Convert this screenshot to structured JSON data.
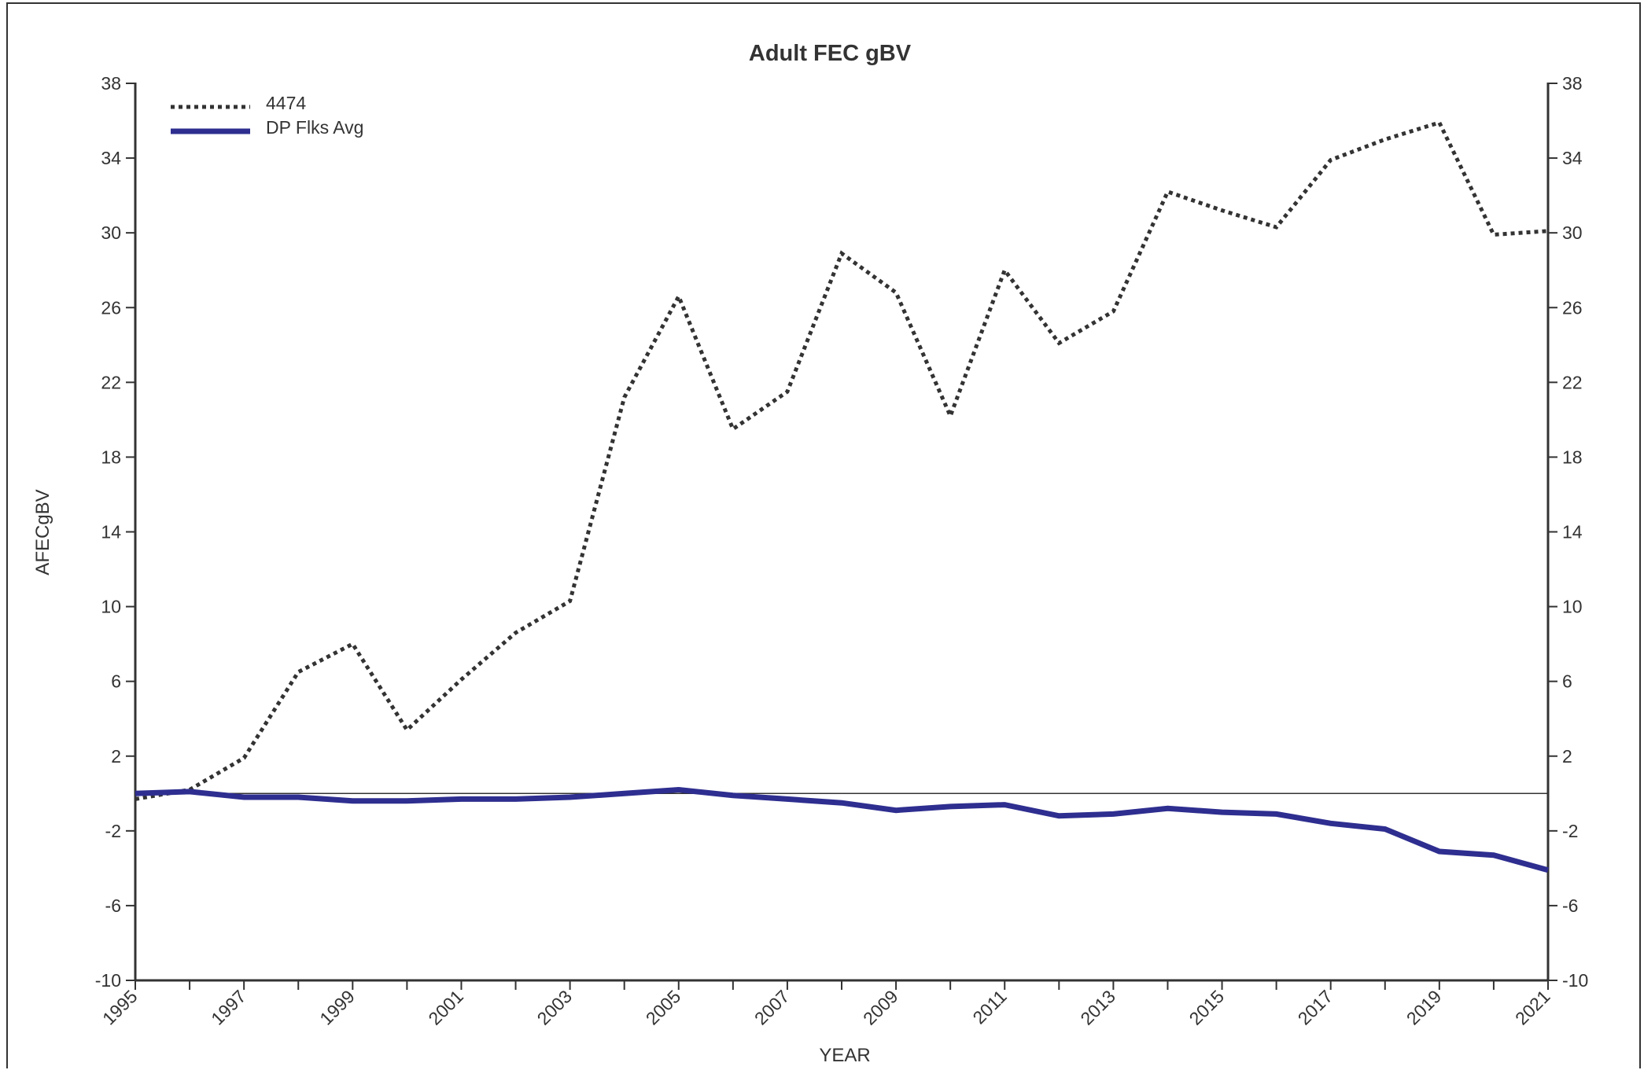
{
  "chart_data": {
    "type": "line",
    "title": "Adult FEC gBV",
    "xlabel": "YEAR",
    "ylabel": "AFECgBV",
    "xlim": [
      1995,
      2021
    ],
    "ylim": [
      -10,
      38
    ],
    "yticks": [
      -10,
      -6,
      -2,
      2,
      6,
      10,
      14,
      18,
      22,
      26,
      30,
      34,
      38
    ],
    "xticks": [
      1995,
      1997,
      1999,
      2001,
      2003,
      2005,
      2007,
      2009,
      2011,
      2013,
      2015,
      2017,
      2019,
      2021
    ],
    "right_axis": true,
    "reference_line": 0,
    "legend_position": "top-left",
    "x": [
      1995,
      1996,
      1997,
      1998,
      1999,
      2000,
      2001,
      2002,
      2003,
      2004,
      2005,
      2006,
      2007,
      2008,
      2009,
      2010,
      2011,
      2012,
      2013,
      2014,
      2015,
      2016,
      2017,
      2018,
      2019,
      2020,
      2021
    ],
    "series": [
      {
        "name": "4474",
        "style": "dotted",
        "color": "#333333",
        "values": [
          -0.3,
          0.2,
          1.9,
          6.5,
          8.0,
          3.4,
          6.1,
          8.6,
          10.3,
          21.2,
          26.6,
          19.5,
          21.5,
          28.9,
          26.8,
          20.2,
          28.0,
          24.1,
          25.8,
          32.2,
          31.2,
          30.3,
          33.9,
          35.0,
          35.9,
          29.9,
          30.1
        ]
      },
      {
        "name": "DP Flks Avg",
        "style": "solid",
        "color": "#2e2e90",
        "values": [
          0.0,
          0.1,
          -0.2,
          -0.2,
          -0.4,
          -0.4,
          -0.3,
          -0.3,
          -0.2,
          0.0,
          0.2,
          -0.1,
          -0.3,
          -0.5,
          -0.9,
          -0.7,
          -0.6,
          -1.2,
          -1.1,
          -0.8,
          -1.0,
          -1.1,
          -1.6,
          -1.9,
          -3.1,
          -3.3,
          -4.1
        ]
      }
    ]
  }
}
